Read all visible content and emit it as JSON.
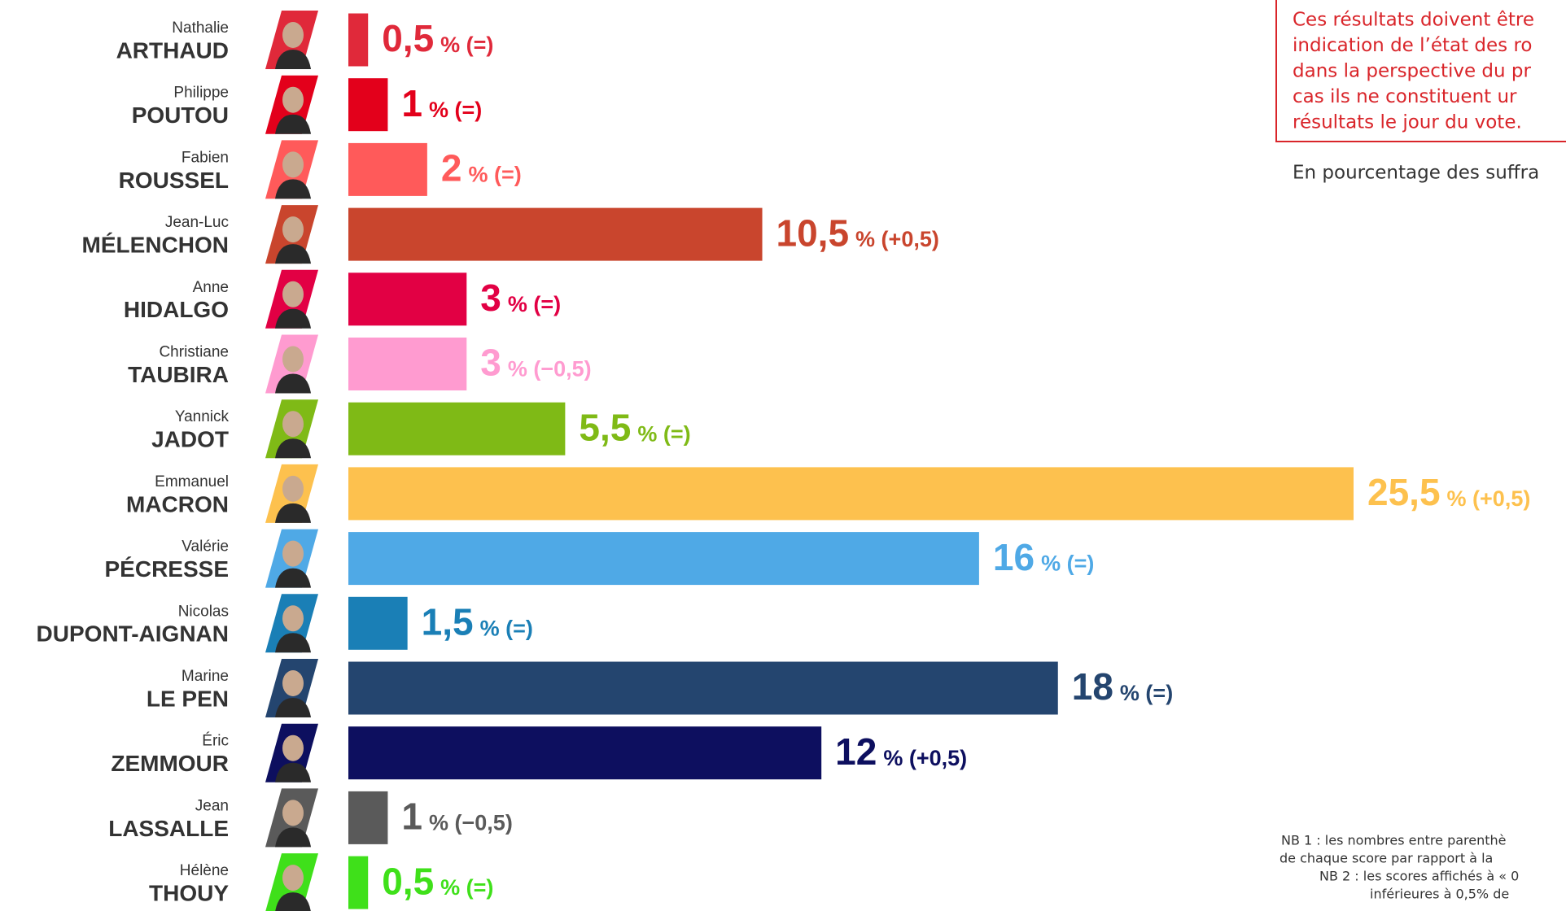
{
  "chart_data": {
    "type": "bar",
    "first_names": [
      "Nathalie",
      "Philippe",
      "Fabien",
      "Jean-Luc",
      "Anne",
      "Christiane",
      "Yannick",
      "Emmanuel",
      "Valérie",
      "Nicolas",
      "Marine",
      "Éric",
      "Jean",
      "Hélène"
    ],
    "categories": [
      "ARTHAUD",
      "POUTOU",
      "ROUSSEL",
      "MÉLENCHON",
      "HIDALGO",
      "TAUBIRA",
      "JADOT",
      "MACRON",
      "PÉCRESSE",
      "DUPONT-AIGNAN",
      "LE PEN",
      "ZEMMOUR",
      "LASSALLE",
      "THOUY"
    ],
    "values": [
      0.5,
      1,
      2,
      10.5,
      3,
      3,
      5.5,
      25.5,
      16,
      1.5,
      18,
      12,
      1,
      0.5
    ],
    "value_labels": [
      "0,5",
      "1",
      "2",
      "10,5",
      "3",
      "3",
      "5,5",
      "25,5",
      "16",
      "1,5",
      "18",
      "12",
      "1",
      "0,5"
    ],
    "changes": [
      "% (=)",
      "% (=)",
      "% (=)",
      "% (+0,5)",
      "% (=)",
      "% (−0,5)",
      "% (=)",
      "% (+0,5)",
      "% (=)",
      "% (=)",
      "% (=)",
      "% (+0,5)",
      "% (−0,5)",
      "% (=)"
    ],
    "colors": [
      "#e0293a",
      "#e3001b",
      "#ff5a5a",
      "#c9452d",
      "#e20044",
      "#ff9bd0",
      "#7fba16",
      "#fdc14e",
      "#4fa9e6",
      "#1a7fb6",
      "#24456f",
      "#0d0f5f",
      "#5a5a5a",
      "#3fe01a"
    ],
    "note_box": [
      "Ces résultats doivent être",
      "indication de l’état des ro",
      "dans la perspective du pr",
      "cas ils ne constituent ur",
      "résultats le jour du vote."
    ],
    "subtitle": "En pourcentage des suffra",
    "footnotes": [
      "NB 1 : les nombres entre parenthè",
      "de chaque score par rapport à la",
      "NB 2 : les scores affichés à « 0",
      "inférieures à 0,5% de"
    ]
  }
}
